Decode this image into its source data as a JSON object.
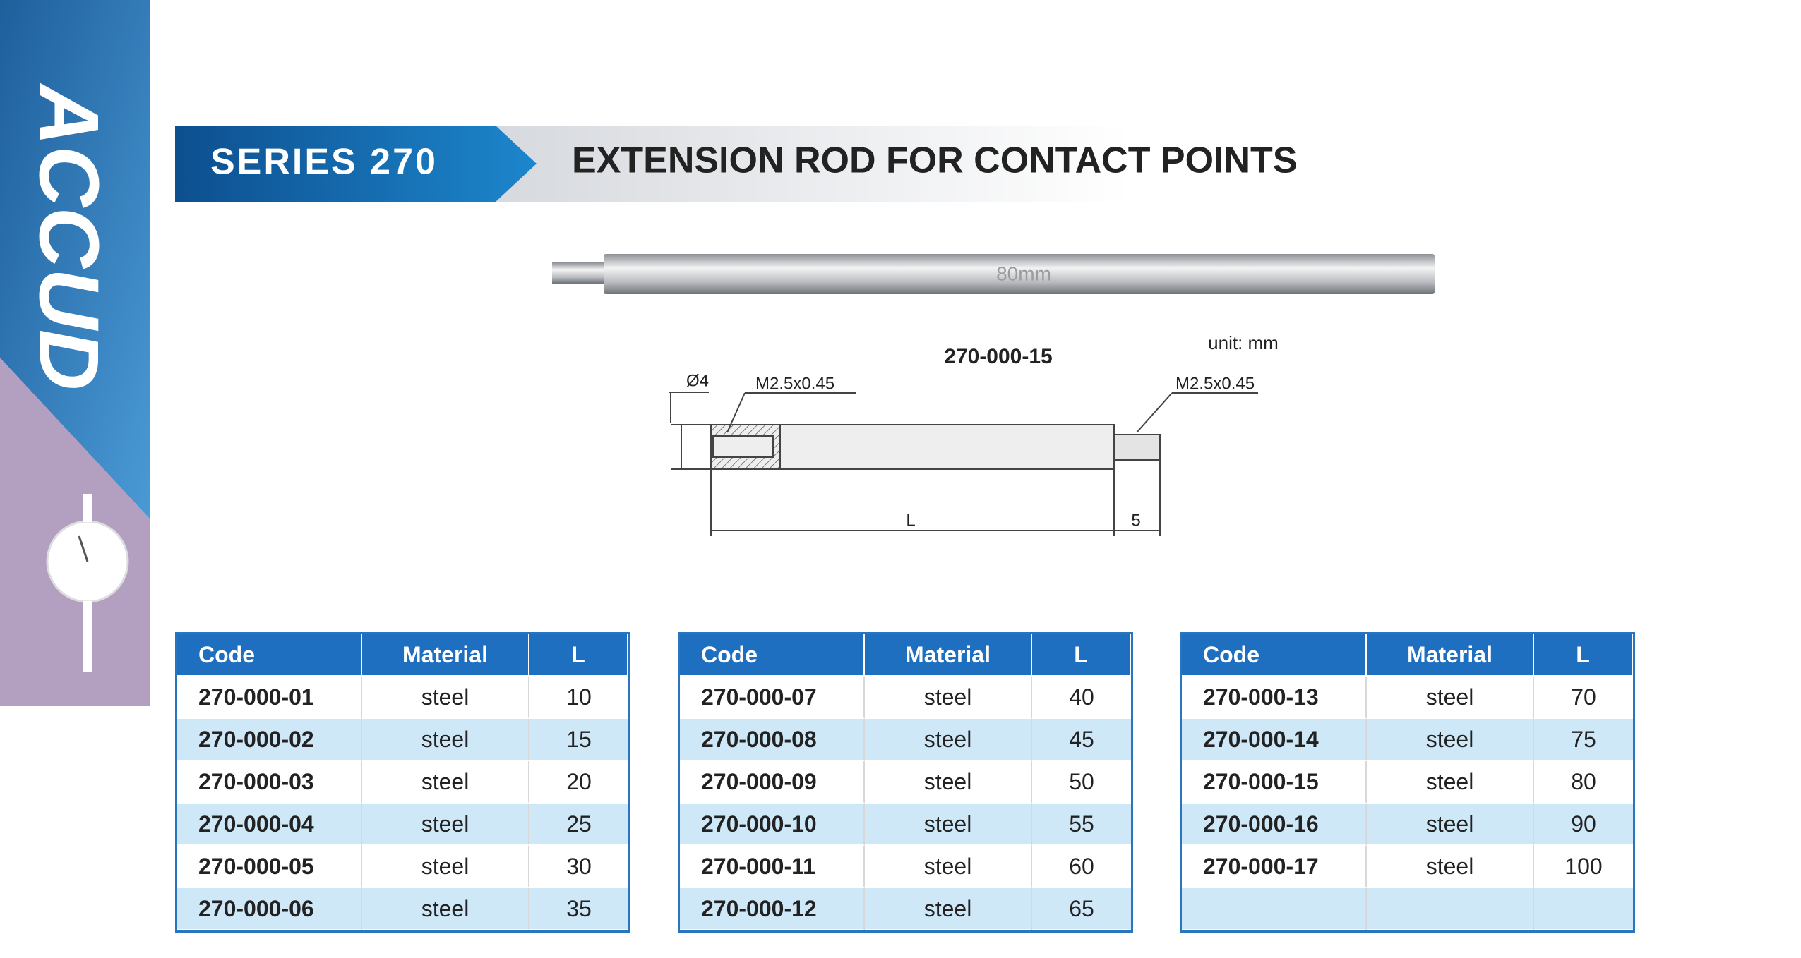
{
  "brand": "ACCUD",
  "header": {
    "series": "SERIES 270",
    "title": "EXTENSION ROD FOR CONTACT POINTS"
  },
  "photo": {
    "label": "80mm"
  },
  "drawing": {
    "code": "270-000-15",
    "unit": "unit: mm",
    "diameter": "Ø4",
    "thread_left": "M2.5x0.45",
    "thread_right": "M2.5x0.45",
    "length": "L",
    "thread_length": "5"
  },
  "tables": [
    {
      "columns": [
        "Code",
        "Material",
        "L"
      ],
      "rows": [
        [
          "270-000-01",
          "steel",
          10
        ],
        [
          "270-000-02",
          "steel",
          15
        ],
        [
          "270-000-03",
          "steel",
          20
        ],
        [
          "270-000-04",
          "steel",
          25
        ],
        [
          "270-000-05",
          "steel",
          30
        ],
        [
          "270-000-06",
          "steel",
          35
        ]
      ]
    },
    {
      "columns": [
        "Code",
        "Material",
        "L"
      ],
      "rows": [
        [
          "270-000-07",
          "steel",
          40
        ],
        [
          "270-000-08",
          "steel",
          45
        ],
        [
          "270-000-09",
          "steel",
          50
        ],
        [
          "270-000-10",
          "steel",
          55
        ],
        [
          "270-000-11",
          "steel",
          60
        ],
        [
          "270-000-12",
          "steel",
          65
        ]
      ]
    },
    {
      "columns": [
        "Code",
        "Material",
        "L"
      ],
      "rows": [
        [
          "270-000-13",
          "steel",
          70
        ],
        [
          "270-000-14",
          "steel",
          75
        ],
        [
          "270-000-15",
          "steel",
          80
        ],
        [
          "270-000-16",
          "steel",
          90
        ],
        [
          "270-000-17",
          "steel",
          100
        ]
      ]
    }
  ]
}
